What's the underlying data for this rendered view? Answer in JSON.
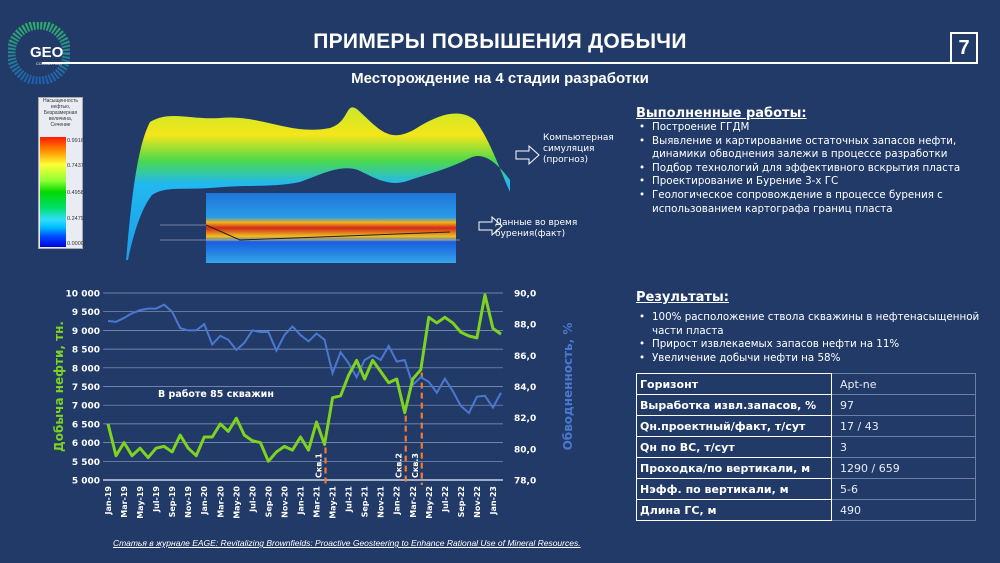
{
  "header": {
    "title": "ПРИМЕРЫ ПОВЫШЕНИЯ ДОБЫЧИ",
    "subtitle": "Месторождение на 4 стадии разработки",
    "page_number": "7",
    "logo_text": "GEO",
    "logo_subtext": "CONSULTING"
  },
  "colorbar": {
    "title": "Насыщенность нефтью, Безразмерная величина, Сечение",
    "ticks": [
      "0.9916",
      "0.7437",
      "0.4958",
      "0.2479",
      "0.0000"
    ]
  },
  "images": {
    "simulation_label": "Компьютерная симуляция (прогноз)",
    "drilling_label": "Данные во время бурения(факт)"
  },
  "works": {
    "heading": "Выполненные работы:",
    "items": [
      "Построение ГГДМ",
      "Выявление и картирование остаточных запасов нефти, динамики обводнения залежи в процессе разработки",
      "Подбор технологий для эффективного вскрытия пласта",
      "Проектирование и Бурение 3-х ГС",
      "Геологическое сопровождение в процессе бурения с использованием картографа границ пласта"
    ]
  },
  "results": {
    "heading": "Результаты:",
    "items": [
      "100% расположение ствола скважины в нефтенасыщенной части пласта",
      "Прирост извлекаемых запасов нефти на 11%",
      "Увеличение добычи нефти на 58%"
    ]
  },
  "table": [
    {
      "key": "Горизонт",
      "value": "Apt-ne"
    },
    {
      "key": "Выработка извл.запасов, %",
      "value": "97"
    },
    {
      "key": "Qн.проектный/факт, т/сут",
      "value": "17 / 43"
    },
    {
      "key": "Qн по ВС, т/сут",
      "value": "3"
    },
    {
      "key": "Проходка/по вертикали, м",
      "value": "1290 / 659"
    },
    {
      "key": "Нэфф. по вертикали, м",
      "value": "5-6"
    },
    {
      "key": "Длина ГС, м",
      "value": "490"
    }
  ],
  "footer": "Статья в журнале EAGE: Revitalizing Brownfields: Proactive Geosteering to Enhance Rational Use of Mineral Resources.",
  "chart_data": {
    "type": "line",
    "ylabel": "Добыча нефти, тн.",
    "y2label": "Обводненность, %",
    "ylim": [
      5000,
      10000
    ],
    "y2lim": [
      78,
      90
    ],
    "yticks": [
      "10 000",
      "9 500",
      "9 000",
      "8 500",
      "8 000",
      "7 500",
      "7 000",
      "6 500",
      "6 000",
      "5 500",
      "5 000"
    ],
    "y2ticks": [
      "90,0",
      "88,0",
      "86,0",
      "84,0",
      "82,0",
      "80,0",
      "78,0"
    ],
    "xtick_labels": [
      "Jan-19",
      "Mar-19",
      "May-19",
      "Jul-19",
      "Sep-19",
      "Nov-19",
      "Jan-20",
      "Mar-20",
      "May-20",
      "Jul-20",
      "Sep-20",
      "Nov-20",
      "Jan-21",
      "Mar-21",
      "May-21",
      "Jul-21",
      "Sep-21",
      "Nov-21",
      "Jan-22",
      "Mar-22",
      "May-22",
      "Jul-22",
      "Sep-22",
      "Nov-22",
      "Jan-23"
    ],
    "grid": true,
    "annotation": "В работе 85 скважин",
    "markers": [
      {
        "label": "Скв.1",
        "month_index": 27
      },
      {
        "label": "Скв.2",
        "month_index": 37
      },
      {
        "label": "Скв.3",
        "month_index": 39
      }
    ],
    "colors": {
      "oil": "#7ed321",
      "water": "#4a78d0",
      "marker": "#f07a2e"
    },
    "series": [
      {
        "axis": "left",
        "values": [
          6500,
          5650,
          6000,
          5650,
          5850,
          5600,
          5850,
          5900,
          5750,
          6200,
          5850,
          5650,
          6150,
          6150,
          6500,
          6300,
          6650,
          6200,
          6050,
          6000,
          5500,
          5750,
          5900,
          5800,
          6150,
          5800,
          6550,
          5950,
          7200,
          7250,
          7800,
          8200,
          7700,
          8200,
          7900,
          7600,
          7700,
          6800,
          7700,
          7950,
          9350,
          9200,
          9350,
          9200,
          8950,
          8850,
          8800,
          9950,
          9050,
          8900
        ]
      },
      {
        "axis": "right",
        "values": [
          88.2,
          88.15,
          88.4,
          88.7,
          88.9,
          89.0,
          89.0,
          89.25,
          88.8,
          87.75,
          87.6,
          87.6,
          88.0,
          86.7,
          87.25,
          87.0,
          86.35,
          86.8,
          87.6,
          87.5,
          87.5,
          86.3,
          87.3,
          87.85,
          87.3,
          86.9,
          87.4,
          87.0,
          84.85,
          86.2,
          85.5,
          84.6,
          85.7,
          86.0,
          85.7,
          86.6,
          85.6,
          85.7,
          84.1,
          84.6,
          84.3,
          83.6,
          84.5,
          83.7,
          82.75,
          82.3,
          83.35,
          83.4,
          82.65,
          83.6
        ]
      }
    ]
  }
}
